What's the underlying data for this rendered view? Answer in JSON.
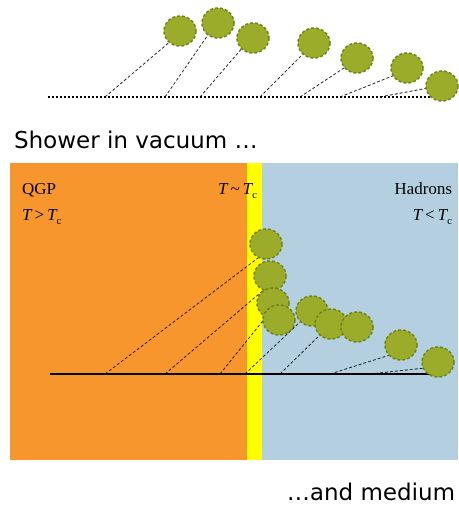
{
  "captions": {
    "vacuum": "Shower in vacuum …",
    "medium": "…and medium"
  },
  "regions": {
    "qgp": {
      "name": "QGP",
      "var": "T",
      "op": ">",
      "sub": "c"
    },
    "transition": {
      "var": "T",
      "op": "~",
      "sub": "c"
    },
    "hadrons": {
      "name": "Hadrons",
      "var": "T",
      "op": "<",
      "sub": "c"
    }
  }
}
